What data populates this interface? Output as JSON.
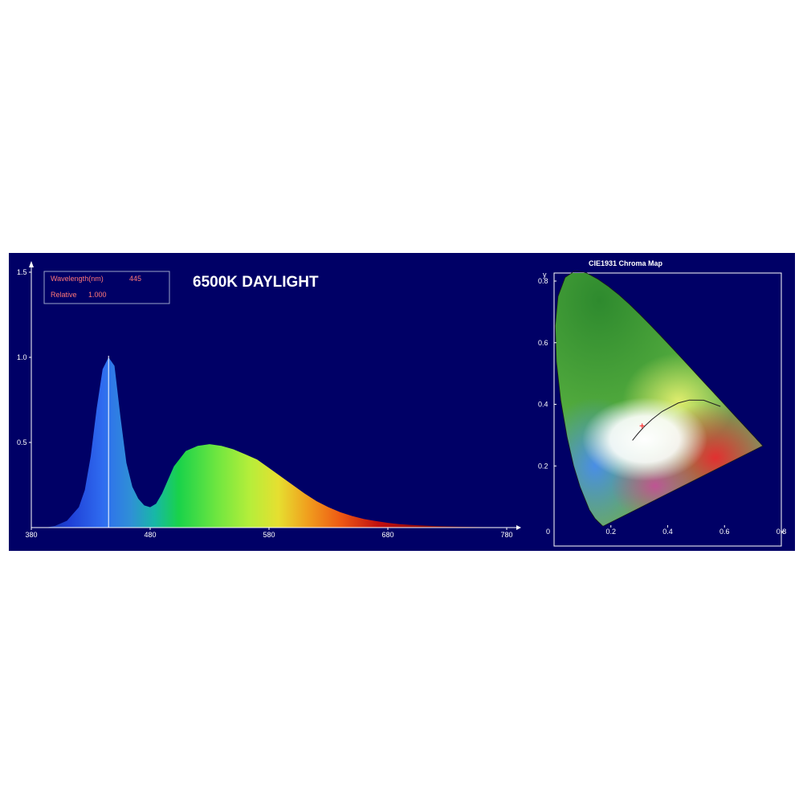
{
  "chart_data": [
    {
      "type": "area",
      "title": "6500K DAYLIGHT",
      "readout": {
        "wavelength_label": "Wavelength(nm)",
        "wavelength_value": "445",
        "relative_label": "Relative",
        "relative_value": "1.000"
      },
      "xlim": [
        380,
        780
      ],
      "ylim": [
        0,
        1.5
      ],
      "x_ticks": [
        "380",
        "480",
        "580",
        "680",
        "780"
      ],
      "y_ticks": [
        "0.5",
        "1.0",
        "1.5"
      ],
      "cursor_x": 445,
      "series": [
        {
          "x": [
            392,
            400,
            410,
            420,
            425,
            430,
            435,
            440,
            445,
            450,
            455,
            460,
            465,
            470,
            475,
            480,
            485,
            490,
            495,
            500,
            510,
            520,
            530,
            540,
            550,
            560,
            570,
            580,
            590,
            600,
            610,
            620,
            630,
            640,
            650,
            660,
            670,
            680,
            690,
            700,
            720,
            740,
            760,
            780
          ],
          "y": [
            0.0,
            0.01,
            0.04,
            0.12,
            0.22,
            0.42,
            0.7,
            0.93,
            1.0,
            0.95,
            0.65,
            0.38,
            0.24,
            0.17,
            0.13,
            0.12,
            0.14,
            0.2,
            0.28,
            0.36,
            0.45,
            0.48,
            0.49,
            0.48,
            0.46,
            0.43,
            0.4,
            0.35,
            0.3,
            0.25,
            0.2,
            0.155,
            0.12,
            0.09,
            0.068,
            0.05,
            0.038,
            0.028,
            0.02,
            0.015,
            0.009,
            0.005,
            0.003,
            0.002
          ]
        }
      ]
    },
    {
      "type": "scatter",
      "title": "CIE1931 Chroma Map",
      "xlabel": "x",
      "ylabel": "y",
      "xlim": [
        0,
        0.8
      ],
      "ylim": [
        0,
        0.8
      ],
      "x_ticks": [
        "0.2",
        "0.4",
        "0.6",
        "0.8"
      ],
      "y_ticks": [
        "0.2",
        "0.4",
        "0.6",
        "0.8"
      ],
      "origin_label": "0",
      "marker": {
        "x": 0.31,
        "y": 0.33,
        "color": "#ff3333"
      },
      "locus": {
        "x": [
          0.1741,
          0.1738,
          0.1733,
          0.1726,
          0.1714,
          0.1689,
          0.1644,
          0.1566,
          0.144,
          0.1241,
          0.0913,
          0.0687,
          0.0454,
          0.0235,
          0.0082,
          0.0039,
          0.0139,
          0.0389,
          0.0743,
          0.1142,
          0.1547,
          0.1929,
          0.2296,
          0.2658,
          0.3016,
          0.3373,
          0.3731,
          0.4087,
          0.4441,
          0.4788,
          0.5125,
          0.5448,
          0.5752,
          0.6029,
          0.627,
          0.6482,
          0.6658,
          0.6801,
          0.6915,
          0.7006,
          0.7079,
          0.714,
          0.719,
          0.723,
          0.726,
          0.7347
        ],
        "y": [
          0.005,
          0.0049,
          0.0048,
          0.0048,
          0.0051,
          0.0069,
          0.0109,
          0.0177,
          0.0297,
          0.0578,
          0.1327,
          0.2007,
          0.295,
          0.4127,
          0.5384,
          0.6548,
          0.7502,
          0.812,
          0.8338,
          0.8262,
          0.8059,
          0.7816,
          0.7543,
          0.7243,
          0.6923,
          0.6589,
          0.6245,
          0.5896,
          0.5547,
          0.5202,
          0.4866,
          0.4544,
          0.4242,
          0.3965,
          0.3725,
          0.3514,
          0.334,
          0.3197,
          0.3083,
          0.2993,
          0.292,
          0.2859,
          0.2809,
          0.277,
          0.274,
          0.2653
        ]
      },
      "planckian": {
        "x": [
          0.5857,
          0.5267,
          0.4762,
          0.4369,
          0.3805,
          0.3453,
          0.3221,
          0.3064,
          0.2952,
          0.2869,
          0.2806,
          0.2759
        ],
        "y": [
          0.3931,
          0.4133,
          0.4137,
          0.4041,
          0.3768,
          0.3516,
          0.3318,
          0.3166,
          0.3048,
          0.2956,
          0.2884,
          0.2829
        ]
      },
      "colors": {
        "background": "#000066",
        "grid": "#ffffff",
        "marker": "#ff3333",
        "cursor": "#ffffff"
      }
    }
  ]
}
